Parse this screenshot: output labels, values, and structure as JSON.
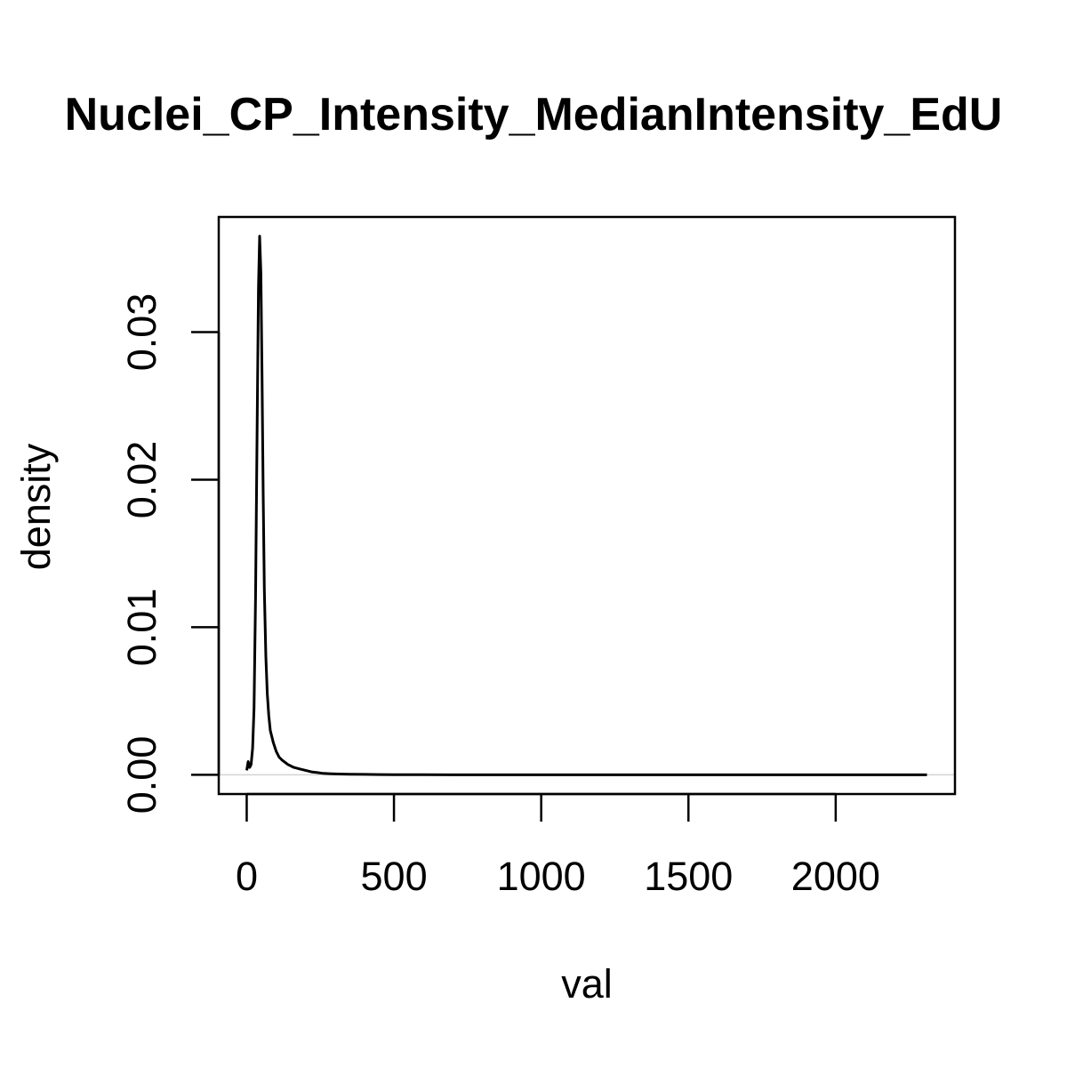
{
  "chart_data": {
    "type": "line",
    "title": "Nuclei_CP_Intensity_MedianIntensity_EdU",
    "xlabel": "val",
    "ylabel": "density",
    "xlim": [
      -95,
      2405
    ],
    "ylim": [
      -0.0013,
      0.0378
    ],
    "xticks": [
      0,
      500,
      1000,
      1500,
      2000
    ],
    "xtick_labels": [
      "0",
      "500",
      "1000",
      "1500",
      "2000"
    ],
    "yticks": [
      0.0,
      0.01,
      0.02,
      0.03
    ],
    "ytick_labels": [
      "0.00",
      "0.01",
      "0.02",
      "0.03"
    ],
    "grid": false,
    "zero_line": true,
    "colors": {
      "line": "#000000",
      "zero_line": "#d3d3d3",
      "frame": "#000000"
    },
    "series": [
      {
        "x": [
          0,
          5,
          10,
          15,
          20,
          25,
          30,
          35,
          40,
          44,
          48,
          52,
          56,
          60,
          65,
          70,
          75,
          80,
          90,
          100,
          110,
          120,
          140,
          160,
          180,
          200,
          220,
          240,
          260,
          280,
          300,
          350,
          400,
          450,
          500,
          600,
          800,
          1000,
          1200,
          1500,
          1800,
          2000,
          2200,
          2310
        ],
        "y": [
          0.0003,
          0.0009,
          0.0005,
          0.0007,
          0.0018,
          0.0045,
          0.012,
          0.023,
          0.033,
          0.0365,
          0.034,
          0.027,
          0.019,
          0.0125,
          0.008,
          0.0055,
          0.004,
          0.003,
          0.0022,
          0.0016,
          0.0012,
          0.001,
          0.0007,
          0.0005,
          0.0004,
          0.0003,
          0.0002,
          0.00015,
          0.0001,
          8e-05,
          6e-05,
          4e-05,
          3e-05,
          2e-05,
          1e-05,
          5e-06,
          0,
          0,
          0,
          0,
          0,
          0,
          0,
          0
        ]
      }
    ]
  }
}
